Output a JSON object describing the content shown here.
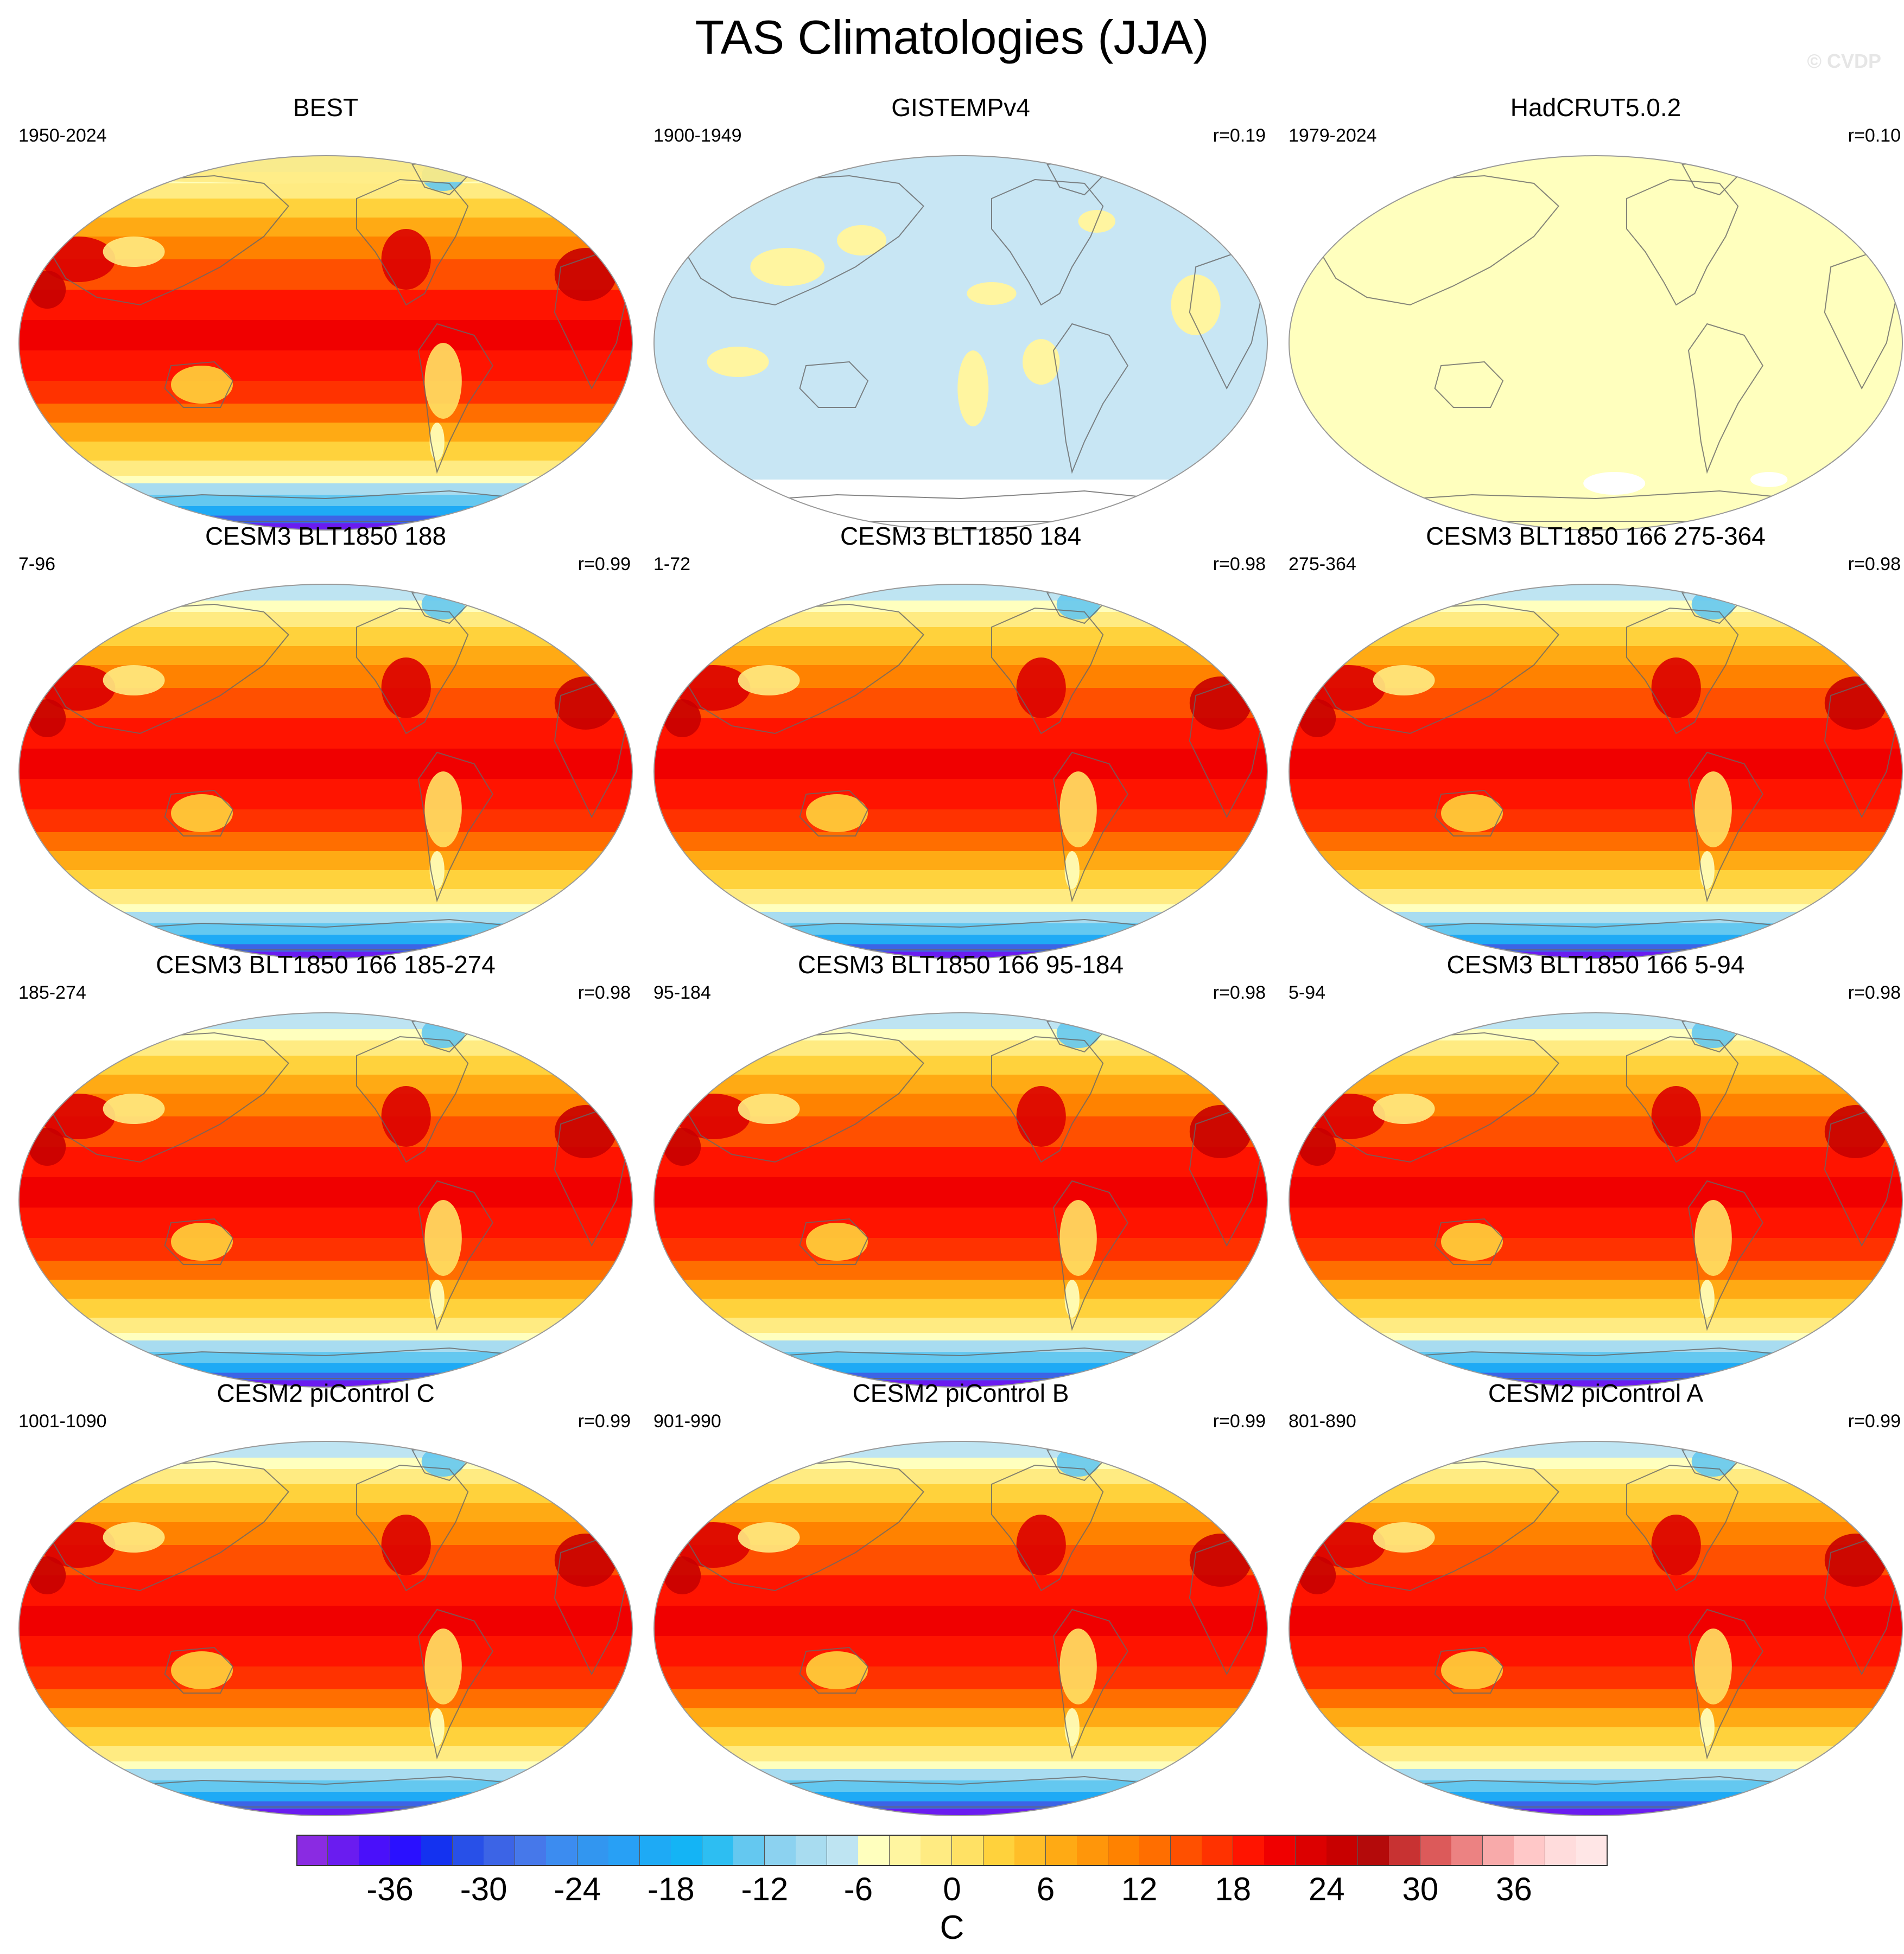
{
  "title": "TAS Climatologies (JJA)",
  "watermark": "© CVDP",
  "panels": [
    {
      "title": "BEST",
      "left": "1950-2024",
      "right": "",
      "style": "obs-best"
    },
    {
      "title": "GISTEMPv4",
      "left": "1900-1949",
      "right": "r=0.19",
      "style": "obs-gistemp"
    },
    {
      "title": "HadCRUT5.0.2",
      "left": "1979-2024",
      "right": "r=0.10",
      "style": "obs-hadcrut"
    },
    {
      "title": "CESM3 BLT1850 188",
      "left": "7-96",
      "right": "r=0.99",
      "style": "model"
    },
    {
      "title": "CESM3 BLT1850 184",
      "left": "1-72",
      "right": "r=0.98",
      "style": "model"
    },
    {
      "title": "CESM3 BLT1850 166 275-364",
      "left": "275-364",
      "right": "r=0.98",
      "style": "model"
    },
    {
      "title": "CESM3 BLT1850 166 185-274",
      "left": "185-274",
      "right": "r=0.98",
      "style": "model"
    },
    {
      "title": "CESM3 BLT1850 166 95-184",
      "left": "95-184",
      "right": "r=0.98",
      "style": "model"
    },
    {
      "title": "CESM3 BLT1850 166 5-94",
      "left": "5-94",
      "right": "r=0.98",
      "style": "model"
    },
    {
      "title": "CESM2 piControl C",
      "left": "1001-1090",
      "right": "r=0.99",
      "style": "model"
    },
    {
      "title": "CESM2 piControl B",
      "left": "901-990",
      "right": "r=0.99",
      "style": "model"
    },
    {
      "title": "CESM2 piControl A",
      "left": "801-890",
      "right": "r=0.99",
      "style": "model"
    }
  ],
  "colorbar": {
    "unit": "C",
    "ticks": [
      "-36",
      "-30",
      "-24",
      "-18",
      "-12",
      "-6",
      "0",
      "6",
      "12",
      "18",
      "24",
      "30",
      "36"
    ],
    "tick_values": [
      -36,
      -30,
      -24,
      -18,
      -12,
      -6,
      0,
      6,
      12,
      18,
      24,
      30,
      36
    ],
    "min": -42,
    "max": 42,
    "step": 2,
    "colors": [
      "#8a2be2",
      "#6a1cf0",
      "#4a10fa",
      "#2a10ff",
      "#1432f0",
      "#2850e8",
      "#3c64e6",
      "#4678ea",
      "#3c8cf0",
      "#3296f0",
      "#28a0f5",
      "#1eaaf5",
      "#14b4f5",
      "#2dbef2",
      "#64c8f0",
      "#8cd2f0",
      "#a8dcf0",
      "#bee4f2",
      "#ffffbe",
      "#fff5a0",
      "#ffeb82",
      "#ffe164",
      "#ffd23c",
      "#ffbe28",
      "#ffaa14",
      "#ff960a",
      "#ff8200",
      "#ff6e00",
      "#ff5000",
      "#ff3200",
      "#ff1400",
      "#f00000",
      "#dc0000",
      "#c80000",
      "#b40a0a",
      "#c83232",
      "#dc5a5a",
      "#ec8282",
      "#f8aaaa",
      "#ffc8c8",
      "#ffdcdc",
      "#ffe6e6"
    ]
  }
}
